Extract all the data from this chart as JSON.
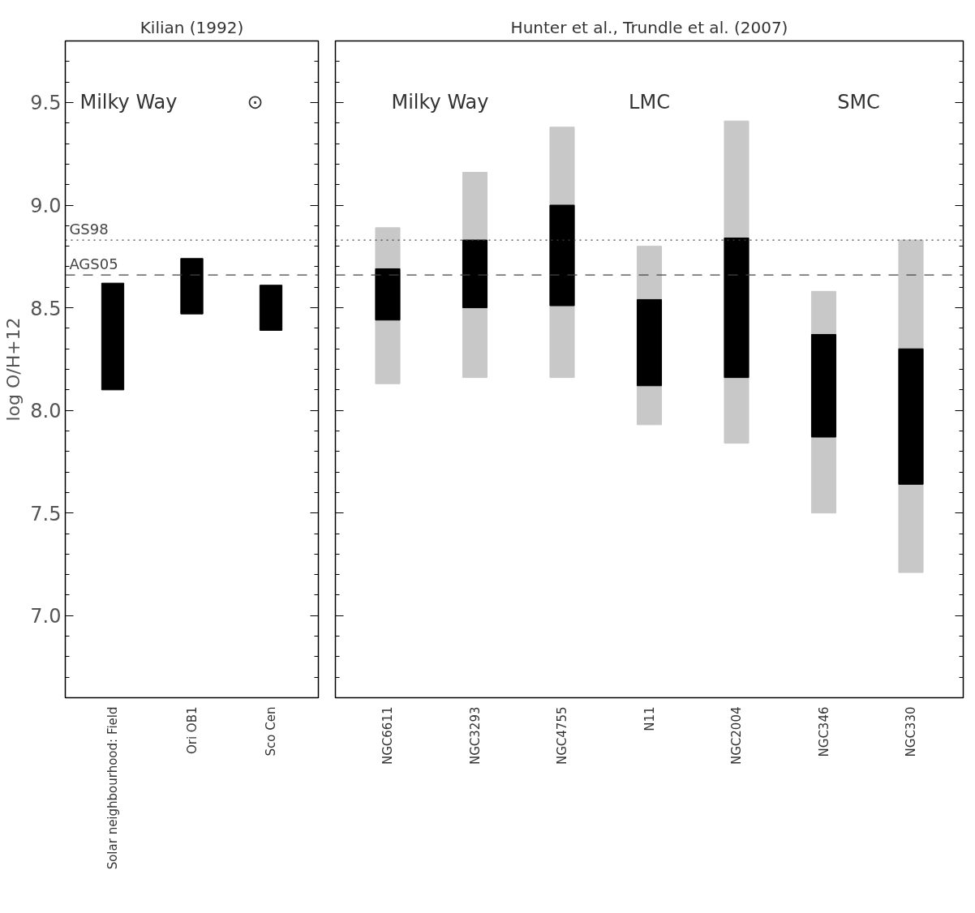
{
  "chart_data": [
    {
      "type": "bar",
      "title": "Kilian (1992)",
      "ylabel": "log O/H+12",
      "categories": [
        "Solar neighbourhood: Field",
        "Ori OB1",
        "Sco Cen"
      ],
      "series": [
        {
          "color": "#000000",
          "base": [
            8.1,
            8.47,
            8.39
          ],
          "values": [
            0.52,
            0.27,
            0.22
          ]
        }
      ],
      "ylim": [
        6.6,
        9.8
      ],
      "yticks": [
        {
          "value": 7.0,
          "label": "7.0"
        },
        {
          "value": 7.5,
          "label": "7.5"
        },
        {
          "value": 8.0,
          "label": "8.0"
        },
        {
          "value": 8.5,
          "label": "8.5"
        },
        {
          "value": 9.0,
          "label": "9.0"
        },
        {
          "value": 9.5,
          "label": "9.5"
        }
      ],
      "ref_lines": [
        {
          "axis": "y",
          "value": 8.83,
          "label": "GS98",
          "line_style": "dotted"
        },
        {
          "axis": "y",
          "value": 8.66,
          "label": "AGS05",
          "line_style": "dashed"
        }
      ],
      "annotations": [
        "Milky Way",
        "⊙"
      ],
      "grid": false
    },
    {
      "type": "bar",
      "title": "Hunter et al., Trundle et al. (2007)",
      "categories": [
        "NGC6611",
        "NGC3293",
        "NGC4755",
        "N11",
        "NGC2004",
        "NGC346",
        "NGC330"
      ],
      "series": [
        {
          "color": "#c8c8c8",
          "base": [
            8.13,
            8.16,
            8.16,
            7.93,
            7.84,
            7.5,
            7.21
          ],
          "values": [
            0.76,
            1.0,
            1.22,
            0.87,
            1.57,
            1.08,
            1.62
          ]
        },
        {
          "color": "#000000",
          "base": [
            8.44,
            8.5,
            8.51,
            8.12,
            8.16,
            7.87,
            7.64
          ],
          "values": [
            0.25,
            0.33,
            0.49,
            0.42,
            0.68,
            0.5,
            0.66
          ]
        }
      ],
      "ylim": [
        6.6,
        9.8
      ],
      "yticks": [
        {
          "value": 7.0,
          "label": null
        },
        {
          "value": 7.5,
          "label": null
        },
        {
          "value": 8.0,
          "label": null
        },
        {
          "value": 8.5,
          "label": null
        },
        {
          "value": 9.0,
          "label": null
        },
        {
          "value": 9.5,
          "label": null
        }
      ],
      "tick_labels": "x",
      "ref_lines": [
        {
          "axis": "y",
          "value": 8.83,
          "line_style": "dotted"
        },
        {
          "axis": "y",
          "value": 8.66,
          "line_style": "dashed"
        }
      ],
      "annotations": [
        "Milky Way",
        "LMC",
        "SMC"
      ],
      "grid": false
    }
  ]
}
